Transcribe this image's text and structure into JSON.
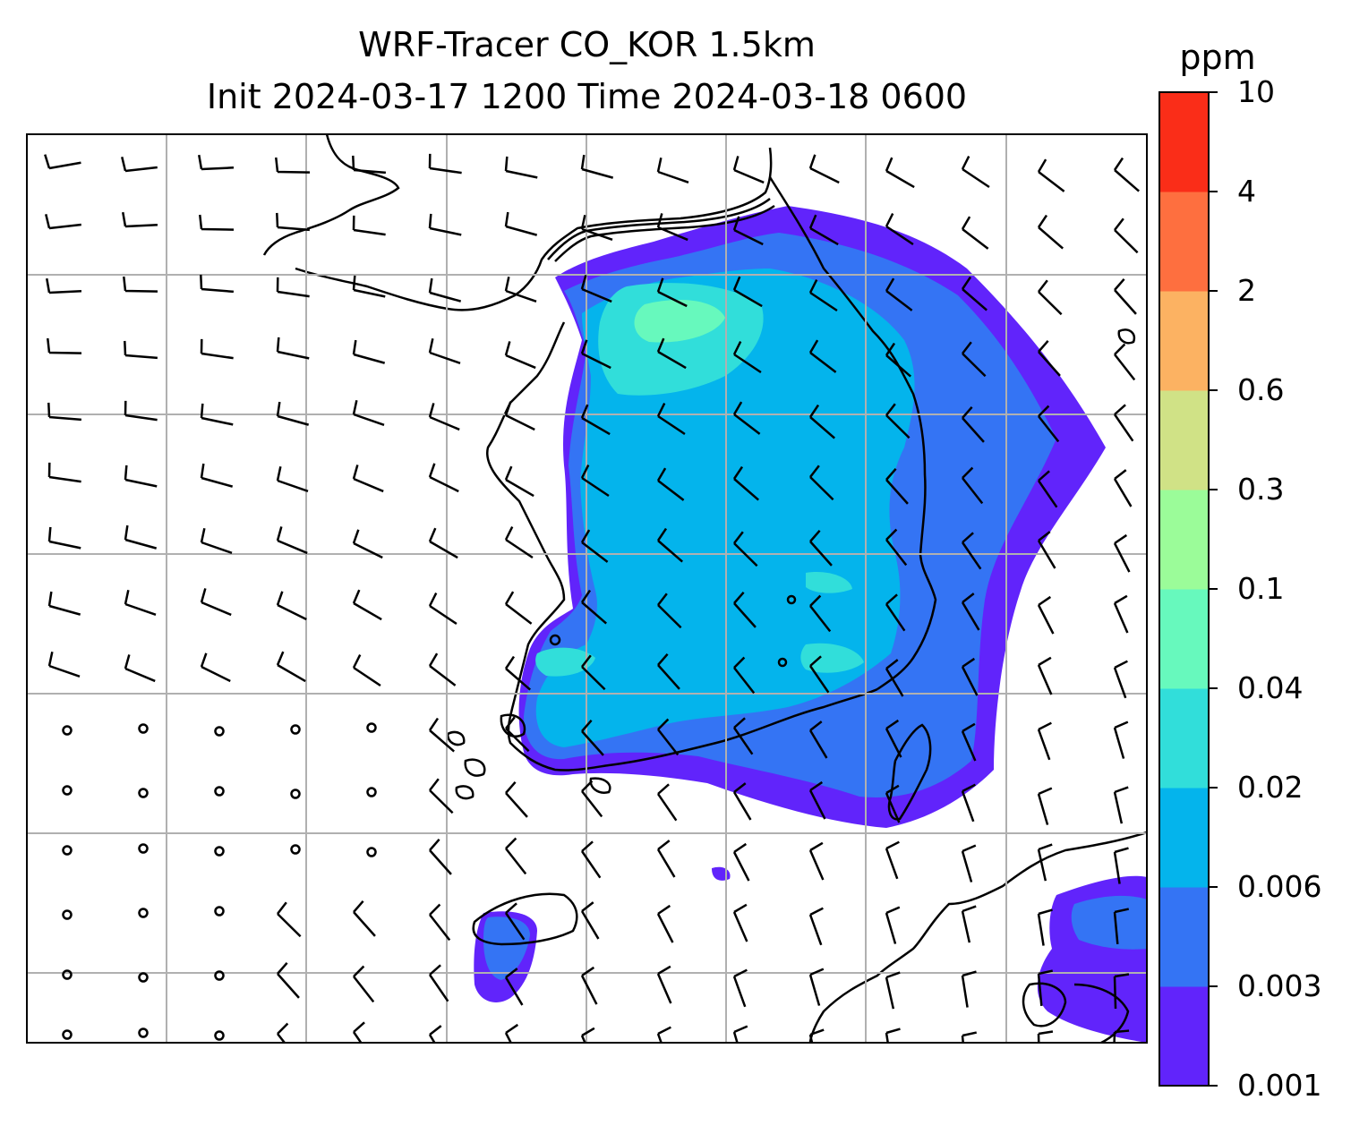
{
  "title": {
    "line1": "WRF-Tracer CO_KOR 1.5km",
    "line2": "Init 2024-03-17 1200 Time 2024-03-18 0600"
  },
  "colorbar": {
    "unit": "ppm",
    "levels": [
      "0.001",
      "0.003",
      "0.006",
      "0.02",
      "0.04",
      "0.1",
      "0.3",
      "0.6",
      "2",
      "4",
      "10"
    ],
    "colors": [
      "#6124fb",
      "#3474f4",
      "#04b4ec",
      "#31deda",
      "#67f9bd",
      "#9bfc99",
      "#d0e286",
      "#fcb262",
      "#fe6f3f",
      "#fa2d18"
    ]
  },
  "map": {
    "features": [
      "concentration-field",
      "coastline",
      "wind-barbs",
      "lat-lon-grid"
    ],
    "grid_color": "#b0b0b0",
    "land_outline_color": "#000000"
  }
}
